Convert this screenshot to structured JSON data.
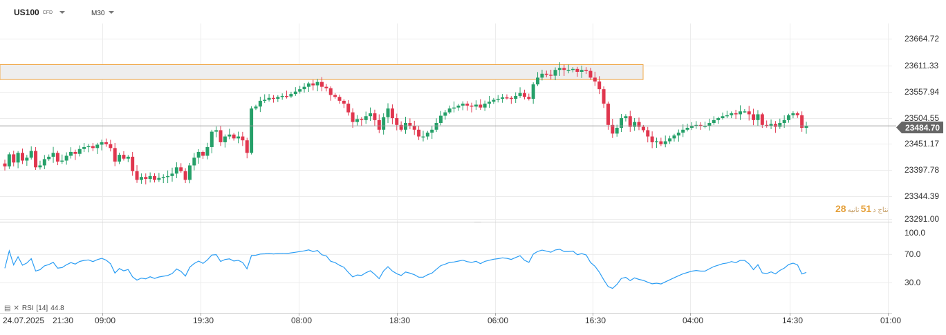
{
  "header": {
    "symbol": "US100",
    "symbol_type": "CFD",
    "timeframe": "M30"
  },
  "price_axis": {
    "labels": [
      "23664.72",
      "23611.33",
      "23557.94",
      "23504.55",
      "23451.17",
      "23397.78",
      "23344.39",
      "23291.00"
    ]
  },
  "current_price": {
    "value": "23484.70",
    "color": "#666666"
  },
  "countdown": {
    "left": "28",
    "word_left": "نثاج د",
    "right": "51",
    "word_right": "ثانیه"
  },
  "rsi": {
    "label": "RSI",
    "period": "[14]",
    "value": "44.8",
    "axis_labels": [
      "100.0",
      "70.0",
      "30.0"
    ],
    "line_color": "#2a9df4"
  },
  "time_axis": {
    "labels": [
      "24.07.2025",
      "21:30",
      "09:00",
      "19:30",
      "08:00",
      "18:30",
      "06:00",
      "16:30",
      "04:00",
      "14:30",
      "01:00"
    ]
  },
  "colors": {
    "up": "#26a069",
    "down": "#e0364e",
    "zone_fill": "#eeeeee",
    "zone_border": "#f0a84a",
    "grid": "#ececec"
  },
  "chart_data": {
    "type": "candlestick",
    "symbol": "US100",
    "timeframe": "M30",
    "price_range": [
      23280,
      23690
    ],
    "zone": {
      "low": 23580,
      "high": 23611
    },
    "candles_close": [
      23400,
      23425,
      23408,
      23428,
      23412,
      23418,
      23432,
      23398,
      23402,
      23415,
      23420,
      23428,
      23410,
      23412,
      23422,
      23430,
      23426,
      23436,
      23440,
      23442,
      23438,
      23445,
      23450,
      23446,
      23438,
      23410,
      23424,
      23416,
      23420,
      23390,
      23372,
      23378,
      23374,
      23380,
      23372,
      23376,
      23378,
      23380,
      23385,
      23398,
      23390,
      23372,
      23402,
      23418,
      23430,
      23422,
      23440,
      23472,
      23475,
      23450,
      23462,
      23466,
      23458,
      23462,
      23454,
      23428,
      23520,
      23524,
      23536,
      23538,
      23542,
      23540,
      23544,
      23546,
      23545,
      23550,
      23555,
      23560,
      23565,
      23572,
      23568,
      23575,
      23565,
      23562,
      23548,
      23544,
      23536,
      23530,
      23512,
      23492,
      23498,
      23496,
      23504,
      23510,
      23496,
      23476,
      23502,
      23520,
      23500,
      23486,
      23476,
      23490,
      23484,
      23476,
      23462,
      23462,
      23470,
      23476,
      23490,
      23505,
      23512,
      23520,
      23522,
      23526,
      23530,
      23526,
      23524,
      23528,
      23522,
      23530,
      23534,
      23538,
      23540,
      23543,
      23542,
      23540,
      23546,
      23552,
      23544,
      23540,
      23570,
      23584,
      23592,
      23590,
      23588,
      23600,
      23604,
      23600,
      23600,
      23602,
      23596,
      23600,
      23598,
      23584,
      23576,
      23560,
      23530,
      23486,
      23468,
      23480,
      23500,
      23504,
      23482,
      23492,
      23482,
      23475,
      23462,
      23450,
      23452,
      23446,
      23452,
      23458,
      23464,
      23470,
      23476,
      23480,
      23484,
      23486,
      23484,
      23484,
      23490,
      23496,
      23500,
      23504,
      23506,
      23510,
      23508,
      23514,
      23514,
      23508,
      23496,
      23508,
      23486,
      23484,
      23488,
      23482,
      23490,
      23496,
      23506,
      23510,
      23506,
      23480,
      23484
    ]
  }
}
